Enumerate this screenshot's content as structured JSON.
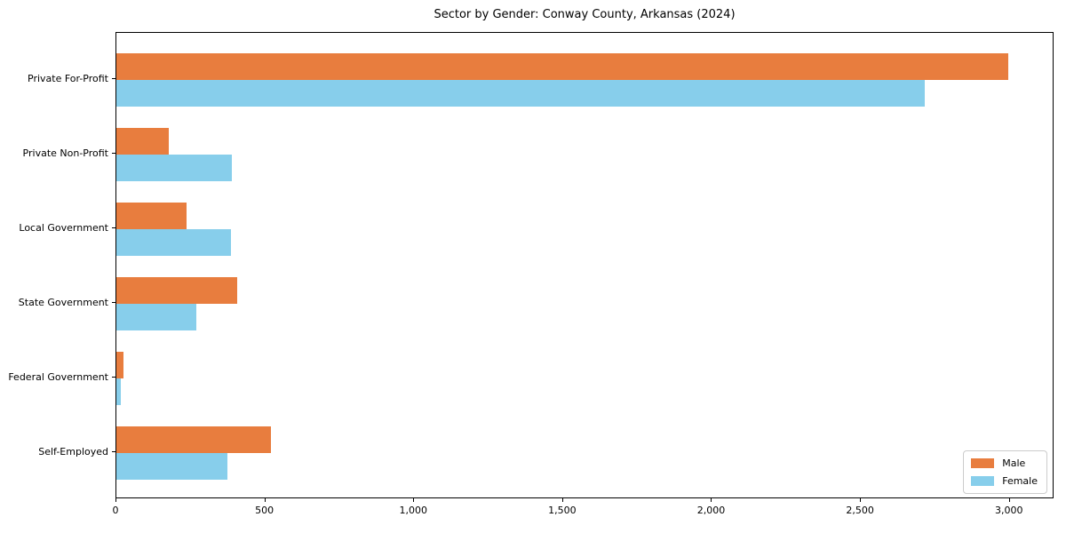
{
  "chart_data": {
    "type": "bar",
    "orientation": "horizontal",
    "title": "Sector by Gender: Conway County, Arkansas (2024)",
    "categories": [
      "Private For-Profit",
      "Private Non-Profit",
      "Local Government",
      "State Government",
      "Federal Government",
      "Self-Employed"
    ],
    "series": [
      {
        "name": "Male",
        "color": "#e87d3e",
        "values": [
          3000,
          175,
          235,
          405,
          25,
          520
        ]
      },
      {
        "name": "Female",
        "color": "#87ceeb",
        "values": [
          2720,
          390,
          385,
          270,
          15,
          375
        ]
      }
    ],
    "xlabel": "",
    "ylabel": "",
    "xlim": [
      0,
      3150
    ],
    "x_ticks": [
      0,
      500,
      1000,
      1500,
      2000,
      2500,
      3000
    ],
    "x_tick_labels": [
      "0",
      "500",
      "1,000",
      "1,500",
      "2,000",
      "2,500",
      "3,000"
    ],
    "grid": false,
    "legend": {
      "position": "lower right",
      "entries": [
        "Male",
        "Female"
      ]
    },
    "colors": {
      "background": "#ffffff",
      "axis": "#000000",
      "legend_border": "#cccccc"
    }
  }
}
